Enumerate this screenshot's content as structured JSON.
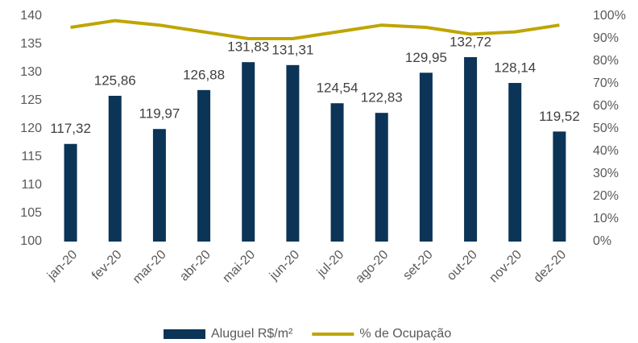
{
  "chart_data": {
    "type": "bar",
    "categories": [
      "jan-20",
      "fev-20",
      "mar-20",
      "abr-20",
      "mai-20",
      "jun-20",
      "jul-20",
      "ago-20",
      "set-20",
      "out-20",
      "nov-20",
      "dez-20"
    ],
    "series": [
      {
        "name": "Aluguel R$/m²",
        "type": "bar",
        "color": "#0b3457",
        "values": [
          117.32,
          125.86,
          119.97,
          126.88,
          131.83,
          131.31,
          124.54,
          122.83,
          129.95,
          132.72,
          128.14,
          119.52
        ],
        "value_labels": [
          "117,32",
          "125,86",
          "119,97",
          "126,88",
          "131,83",
          "131,31",
          "124,54",
          "122,83",
          "129,95",
          "132,72",
          "128,14",
          "119,52"
        ]
      },
      {
        "name": "% de Ocupação",
        "type": "line",
        "axis": "y2",
        "color": "#bfa500",
        "values": [
          95,
          98,
          96,
          93,
          90,
          90,
          93,
          96,
          95,
          92,
          93,
          96
        ]
      }
    ],
    "ylim": [
      100,
      140
    ],
    "yticks": [
      100,
      105,
      110,
      115,
      120,
      125,
      130,
      135,
      140
    ],
    "y2lim": [
      0,
      100
    ],
    "y2ticks": [
      {
        "value": 0,
        "label": "0%"
      },
      {
        "value": 10,
        "label": "10%"
      },
      {
        "value": 20,
        "label": "20%"
      },
      {
        "value": 30,
        "label": "30%"
      },
      {
        "value": 40,
        "label": "40%"
      },
      {
        "value": 50,
        "label": "50%"
      },
      {
        "value": 60,
        "label": "60%"
      },
      {
        "value": 70,
        "label": "70%"
      },
      {
        "value": 80,
        "label": "80%"
      },
      {
        "value": 90,
        "label": "90%"
      },
      {
        "value": 100,
        "label": "100%"
      }
    ],
    "grid": false,
    "legend": "bottom"
  }
}
